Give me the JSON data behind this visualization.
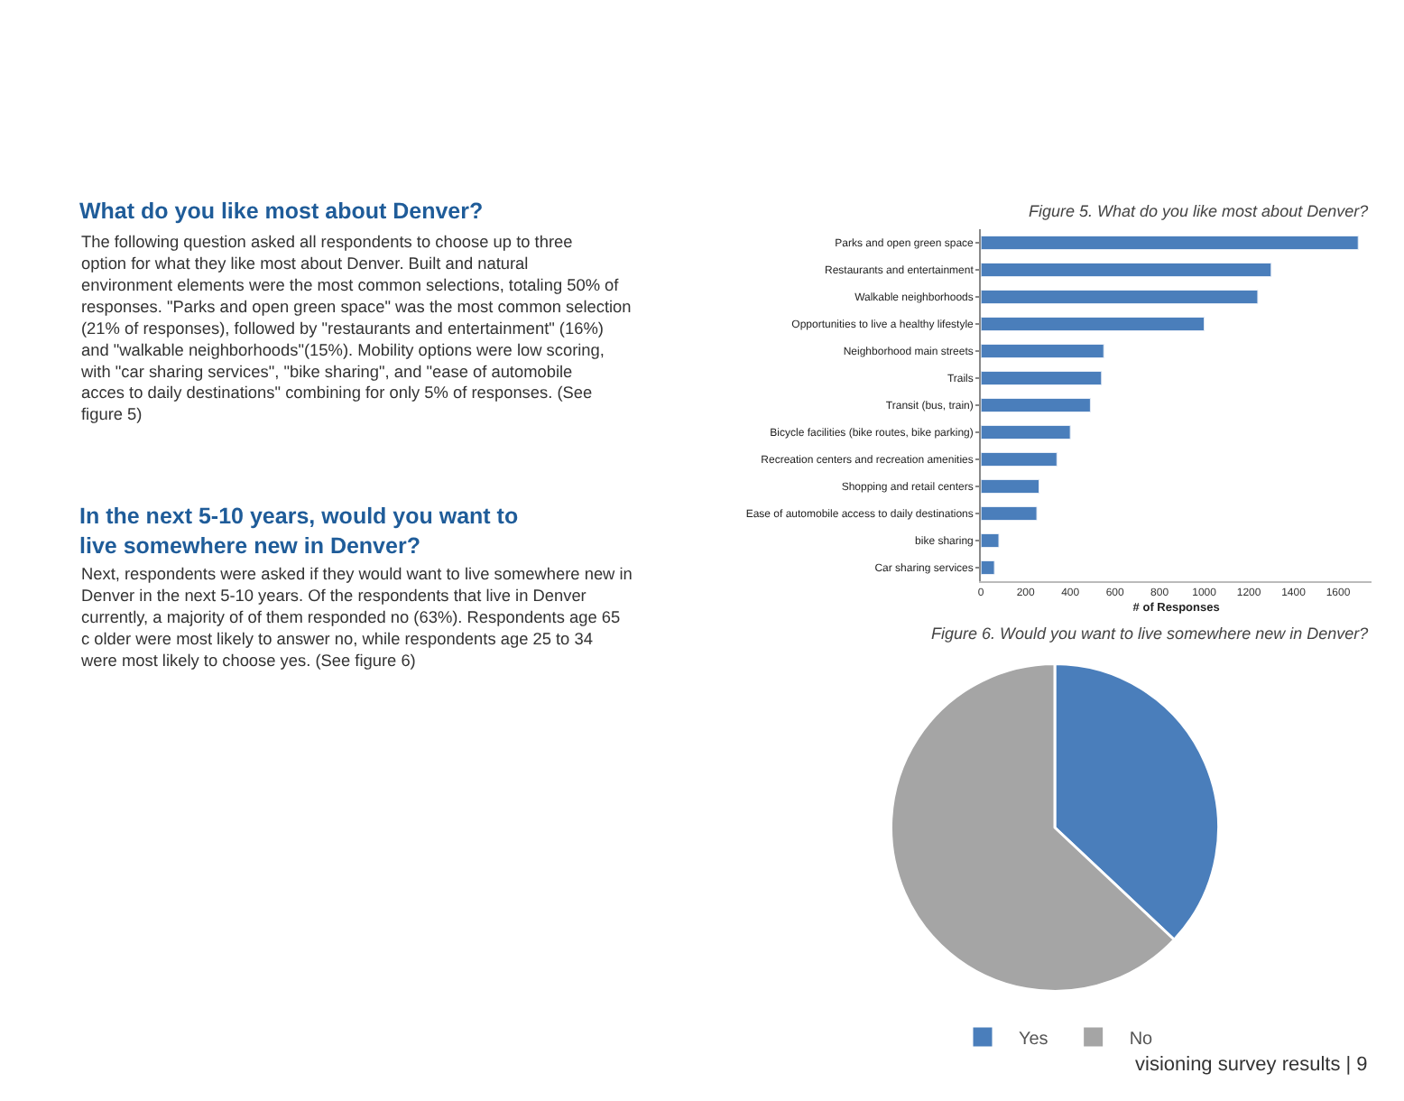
{
  "chart_data": [
    {
      "type": "bar",
      "orientation": "horizontal",
      "title": "Figure 5. What do you like most about Denver?",
      "xlabel": "# of Responses",
      "categories": [
        "Parks and open green space",
        "Restaurants and entertainment",
        "Walkable neighborhoods",
        "Opportunities to live a healthy lifestyle",
        "Neighborhood main streets",
        "Trails",
        "Transit (bus, train)",
        "Bicycle facilities (bike routes, bike parking)",
        "Recreation centers and recreation amenities",
        "Shopping and retail centers",
        "Ease of automobile access to daily destinations",
        "bike sharing",
        "Car sharing services"
      ],
      "values": [
        1690,
        1300,
        1240,
        1000,
        550,
        540,
        490,
        400,
        340,
        260,
        250,
        80,
        60
      ],
      "color": "#4a7ebb",
      "xlim": [
        0,
        1750
      ],
      "xticks": [
        0,
        200,
        400,
        600,
        800,
        1000,
        1200,
        1400,
        1600
      ],
      "legend": false,
      "annotations": [
        "What do you like most about Denver?",
        "The following question asked all respondents to choose up to three option for what they like most about Denver. Built and natural environment elements were the most common selections, totaling 50% of responses. \"Parks and open green space\" was the most common selection (21% of responses), followed by \"restaurants and entertainment\" (16%) and \"walkable neighborhoods\"(15%). Mobility options were low scoring, with \"car sharing services\", \"bike sharing\", and \"ease of automobile acces to daily destinations\" combining for only 5% of responses. (See figure 5)"
      ]
    },
    {
      "type": "pie",
      "title": "Figure 6. Would you want to live somewhere new in Denver?",
      "categories": [
        "Yes",
        "No"
      ],
      "values": [
        37,
        63
      ],
      "colors": [
        "#4a7ebb",
        "#a5a5a5"
      ],
      "legend": "bottom",
      "annotations": [
        "In the next 5-10 years, would you want to live somewhere new in Denver?",
        "Next, respondents were asked if they would want to live somewhere new in Denver in the next 5-10 years. Of the respondents that live in Denver currently, a majority of of them responded no (63%). Respondents age 65 c older were most likely to answer no, while respondents age 25 to 34 were most likely to choose yes. (See figure 6)",
        "visioning survey results | 9"
      ]
    }
  ]
}
